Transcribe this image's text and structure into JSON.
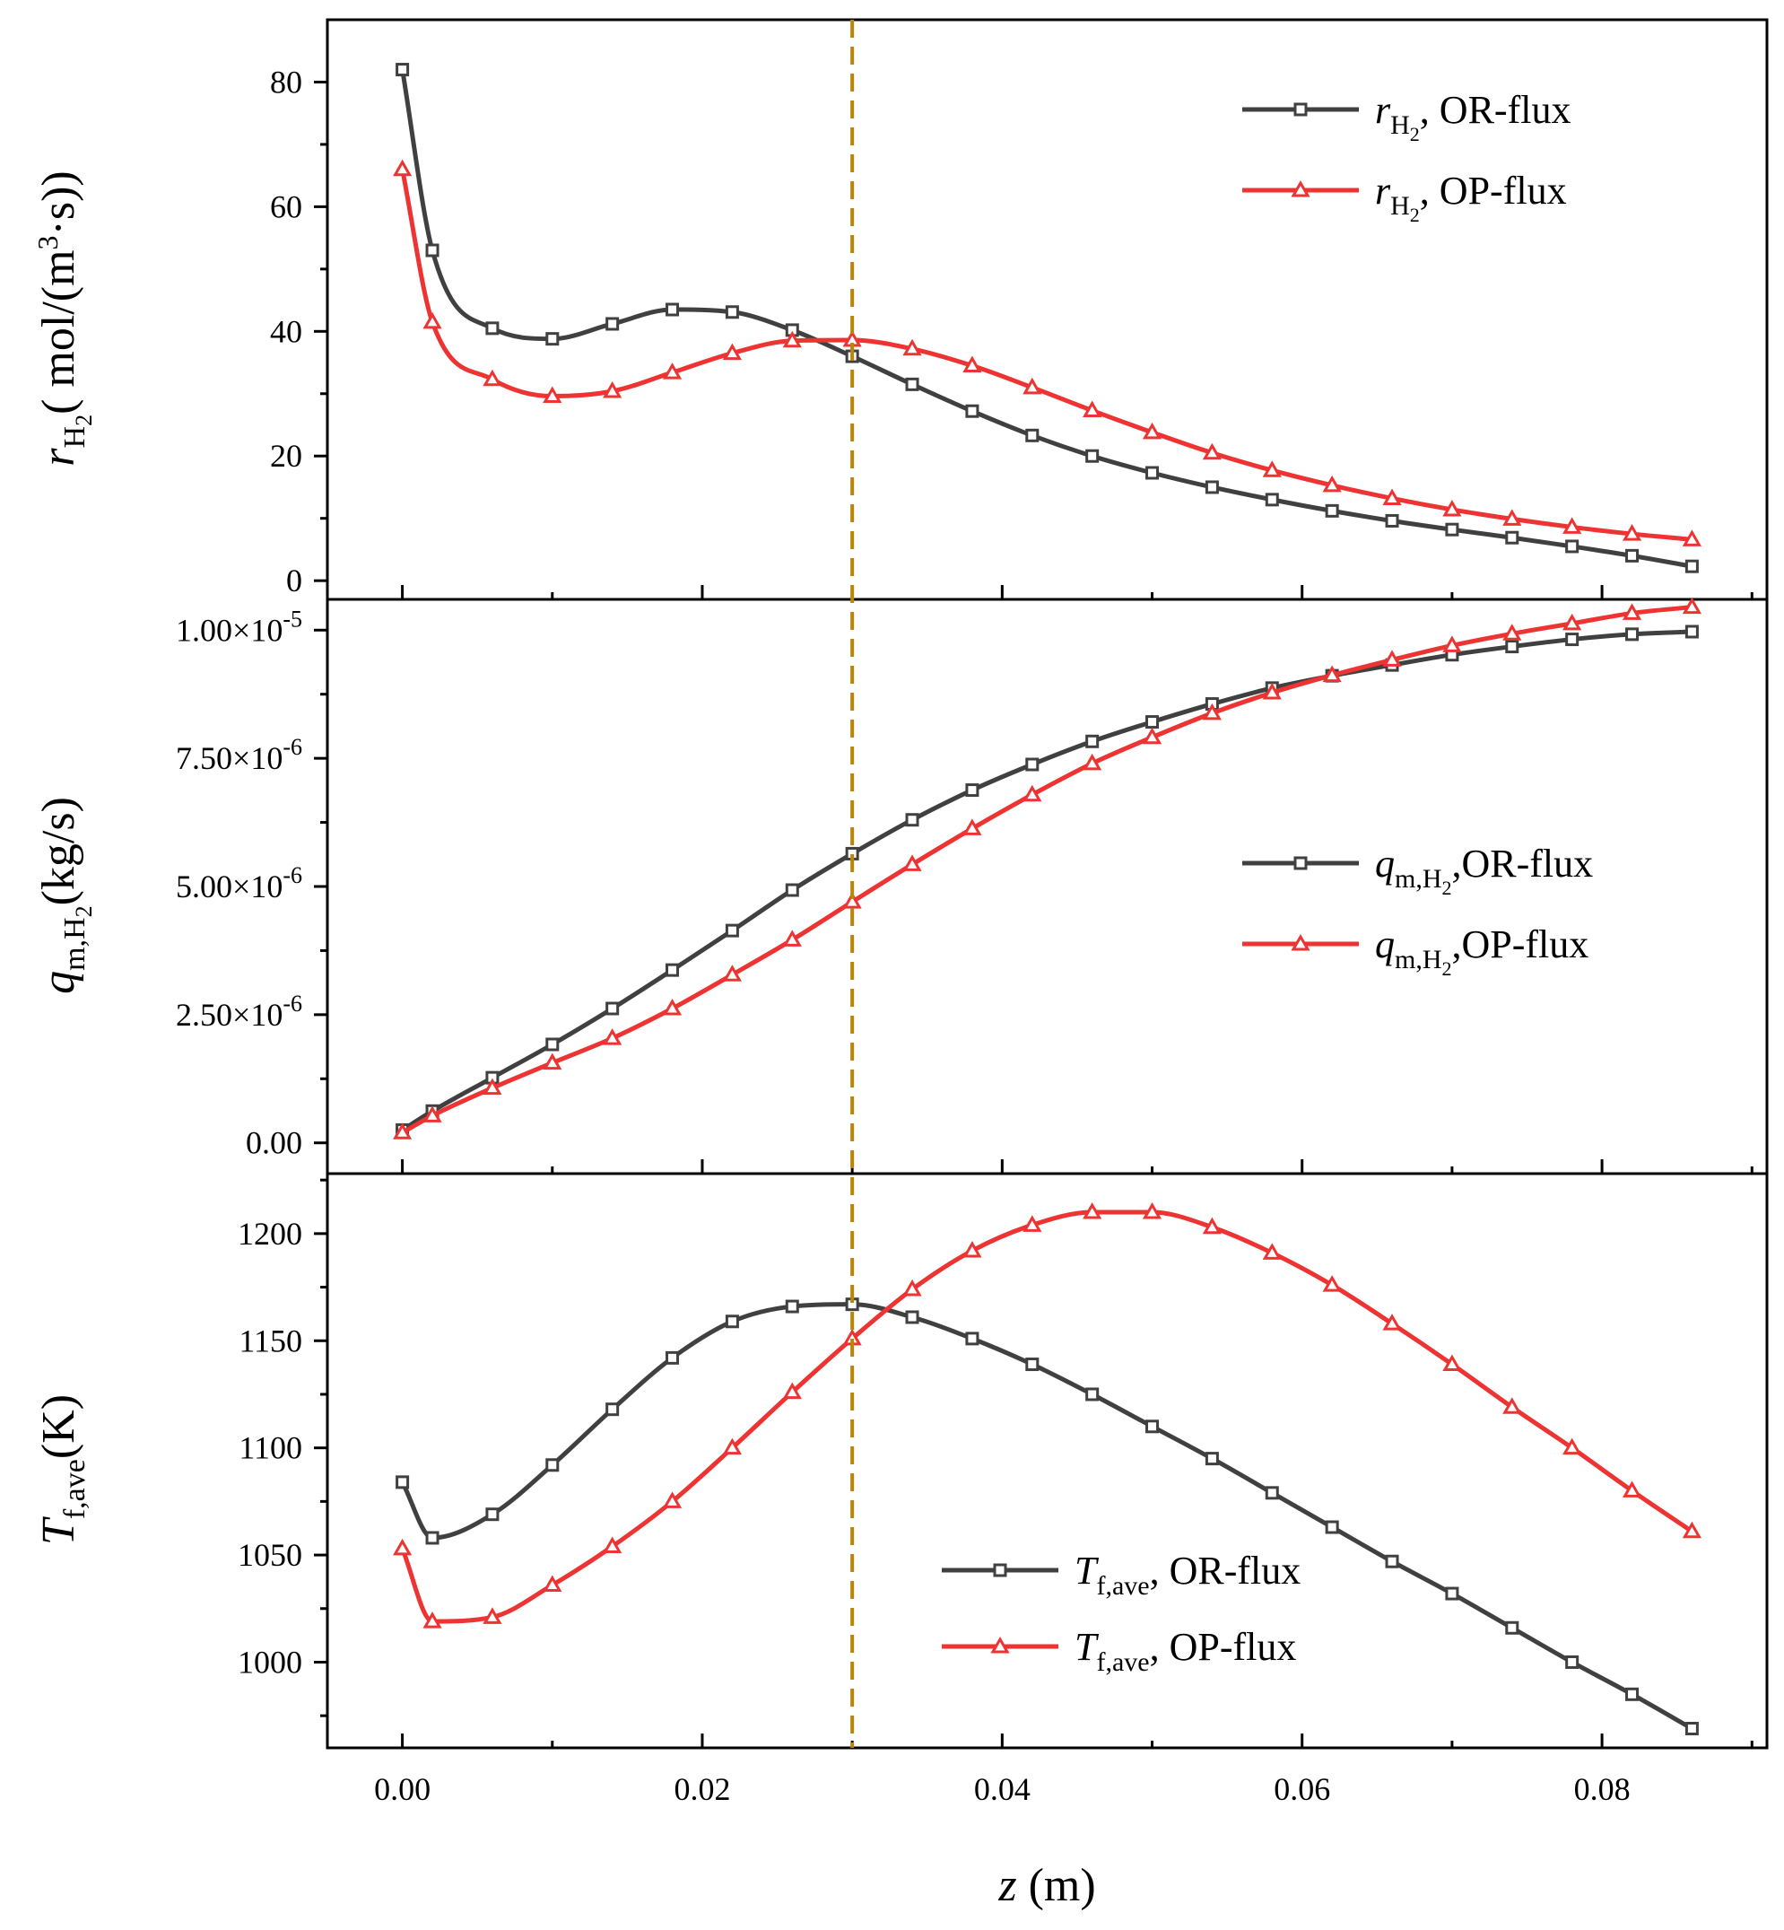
{
  "chart_data": [
    {
      "type": "line",
      "panel": "top",
      "ylabel_parts": {
        "symbol": "r",
        "subscript": "H",
        "subsub": "2",
        "unit_open": "( mol/(m",
        "unit_sup": "3",
        "unit_close": "·s))"
      },
      "ylim": [
        -3,
        90
      ],
      "yticks": [
        0,
        20,
        40,
        60,
        80
      ],
      "ytick_labels": [
        "0",
        "20",
        "40",
        "60",
        "80"
      ],
      "legend_position": "top-right",
      "series": [
        {
          "name": "OR-flux",
          "legend_label": {
            "symbol": "r",
            "subscript": "H",
            "subsub": "2",
            "suffix": ",   OR-flux"
          },
          "color": "#404040",
          "marker": "square",
          "x": [
            0.0,
            0.002,
            0.006,
            0.01,
            0.014,
            0.018,
            0.022,
            0.026,
            0.03,
            0.034,
            0.038,
            0.042,
            0.046,
            0.05,
            0.054,
            0.058,
            0.062,
            0.066,
            0.07,
            0.074,
            0.078,
            0.082,
            0.086
          ],
          "y": [
            82,
            53,
            40.5,
            38.8,
            41.2,
            43.5,
            43.1,
            40.2,
            36.0,
            31.5,
            27.2,
            23.3,
            20.0,
            17.3,
            15.0,
            13.0,
            11.2,
            9.6,
            8.2,
            6.9,
            5.5,
            4.0,
            2.3
          ]
        },
        {
          "name": "OP-flux",
          "legend_label": {
            "symbol": "r",
            "subscript": "H",
            "subsub": "2",
            "suffix": ",   OP-flux"
          },
          "color": "#ee3333",
          "marker": "triangle",
          "x": [
            0.0,
            0.002,
            0.006,
            0.01,
            0.014,
            0.018,
            0.022,
            0.026,
            0.03,
            0.034,
            0.038,
            0.042,
            0.046,
            0.05,
            0.054,
            0.058,
            0.062,
            0.066,
            0.07,
            0.074,
            0.078,
            0.082,
            0.086
          ],
          "y": [
            66,
            41.5,
            32.3,
            29.6,
            30.4,
            33.4,
            36.5,
            38.5,
            38.6,
            37.2,
            34.5,
            31.0,
            27.3,
            23.8,
            20.5,
            17.7,
            15.3,
            13.2,
            11.4,
            9.9,
            8.6,
            7.5,
            6.6
          ]
        }
      ]
    },
    {
      "type": "line",
      "panel": "middle",
      "ylabel_parts": {
        "symbol": "q",
        "subscript": "m,H",
        "subsub": "2",
        "unit": "(kg/s)"
      },
      "ylim": [
        -6e-07,
        1.06e-05
      ],
      "yticks": [
        0,
        2.5e-06,
        5e-06,
        7.5e-06,
        1e-05
      ],
      "ytick_labels": [
        {
          "mantissa": "0.00",
          "exponent": ""
        },
        {
          "mantissa": "2.50×10",
          "exponent": "-6"
        },
        {
          "mantissa": "5.00×10",
          "exponent": "-6"
        },
        {
          "mantissa": "7.50×10",
          "exponent": "-6"
        },
        {
          "mantissa": "1.00×10",
          "exponent": "-5"
        }
      ],
      "legend_position": "center-right",
      "series": [
        {
          "name": "OR-flux",
          "legend_label": {
            "symbol": "q",
            "subscript": "m,H",
            "subsub": "2",
            "suffix": ",OR-flux"
          },
          "color": "#404040",
          "marker": "square",
          "x": [
            0.0,
            0.002,
            0.006,
            0.01,
            0.014,
            0.018,
            0.022,
            0.026,
            0.03,
            0.034,
            0.038,
            0.042,
            0.046,
            0.05,
            0.054,
            0.058,
            0.062,
            0.066,
            0.07,
            0.074,
            0.078,
            0.082,
            0.086
          ],
          "y": [
            2.5e-07,
            6.2e-07,
            1.27e-06,
            1.92e-06,
            2.62e-06,
            3.37e-06,
            4.14e-06,
            4.93e-06,
            5.64e-06,
            6.3e-06,
            6.88e-06,
            7.38e-06,
            7.83e-06,
            8.21e-06,
            8.56e-06,
            8.87e-06,
            9.11e-06,
            9.32e-06,
            9.52e-06,
            9.68e-06,
            9.82e-06,
            9.92e-06,
            9.97e-06
          ]
        },
        {
          "name": "OP-flux",
          "legend_label": {
            "symbol": "q",
            "subscript": "m,H",
            "subsub": "2",
            "suffix": ",OP-flux"
          },
          "color": "#ee3333",
          "marker": "triangle",
          "x": [
            0.0,
            0.002,
            0.006,
            0.01,
            0.014,
            0.018,
            0.022,
            0.026,
            0.03,
            0.034,
            0.038,
            0.042,
            0.046,
            0.05,
            0.054,
            0.058,
            0.062,
            0.066,
            0.07,
            0.074,
            0.078,
            0.082,
            0.086
          ],
          "y": [
            2e-07,
            5.3e-07,
            1.07e-06,
            1.56e-06,
            2.04e-06,
            2.62e-06,
            3.28e-06,
            3.96e-06,
            4.7e-06,
            5.43e-06,
            6.13e-06,
            6.79e-06,
            7.4e-06,
            7.91e-06,
            8.38e-06,
            8.78e-06,
            9.12e-06,
            9.42e-06,
            9.7e-06,
            9.93e-06,
            1.013e-05,
            1.033e-05,
            1.045e-05
          ]
        }
      ]
    },
    {
      "type": "line",
      "panel": "bottom",
      "ylabel_parts": {
        "symbol": "T",
        "subscript": "f,ave",
        "unit": "(K)"
      },
      "ylim": [
        960,
        1228
      ],
      "yticks": [
        1000,
        1050,
        1100,
        1150,
        1200
      ],
      "ytick_labels": [
        "1000",
        "1050",
        "1100",
        "1150",
        "1200"
      ],
      "legend_position": "bottom-center",
      "series": [
        {
          "name": "OR-flux",
          "legend_label": {
            "symbol": "T",
            "subscript": "f,ave",
            "suffix": ", OR-flux"
          },
          "color": "#404040",
          "marker": "square",
          "x": [
            0.0,
            0.002,
            0.006,
            0.01,
            0.014,
            0.018,
            0.022,
            0.026,
            0.03,
            0.034,
            0.038,
            0.042,
            0.046,
            0.05,
            0.054,
            0.058,
            0.062,
            0.066,
            0.07,
            0.074,
            0.078,
            0.082,
            0.086
          ],
          "y": [
            1084,
            1058,
            1069,
            1092,
            1118,
            1142,
            1159,
            1166,
            1167,
            1161,
            1151,
            1139,
            1125,
            1110,
            1095,
            1079,
            1063,
            1047,
            1032,
            1016,
            1000,
            985,
            969
          ]
        },
        {
          "name": "OP-flux",
          "legend_label": {
            "symbol": "T",
            "subscript": "f,ave",
            "suffix": ", OP-flux"
          },
          "color": "#ee3333",
          "marker": "triangle",
          "x": [
            0.0,
            0.002,
            0.006,
            0.01,
            0.014,
            0.018,
            0.022,
            0.026,
            0.03,
            0.034,
            0.038,
            0.042,
            0.046,
            0.05,
            0.054,
            0.058,
            0.062,
            0.066,
            0.07,
            0.074,
            0.078,
            0.082,
            0.086
          ],
          "y": [
            1053,
            1019,
            1021,
            1036,
            1054,
            1075,
            1100,
            1126,
            1151,
            1174,
            1192,
            1204,
            1210,
            1210,
            1203,
            1191,
            1176,
            1158,
            1139,
            1119,
            1100,
            1080,
            1061
          ]
        }
      ]
    }
  ],
  "shared_x": {
    "xlim": [
      -0.005,
      0.091
    ],
    "xticks": [
      0,
      0.02,
      0.04,
      0.06,
      0.08
    ],
    "xtick_labels": [
      "0.00",
      "0.02",
      "0.04",
      "0.06",
      "0.08"
    ],
    "xlabel_symbol": "z",
    "xlabel_unit": " (m)"
  },
  "reference_line": {
    "x": 0.03,
    "color": "#b8860b",
    "style": "dashed"
  }
}
